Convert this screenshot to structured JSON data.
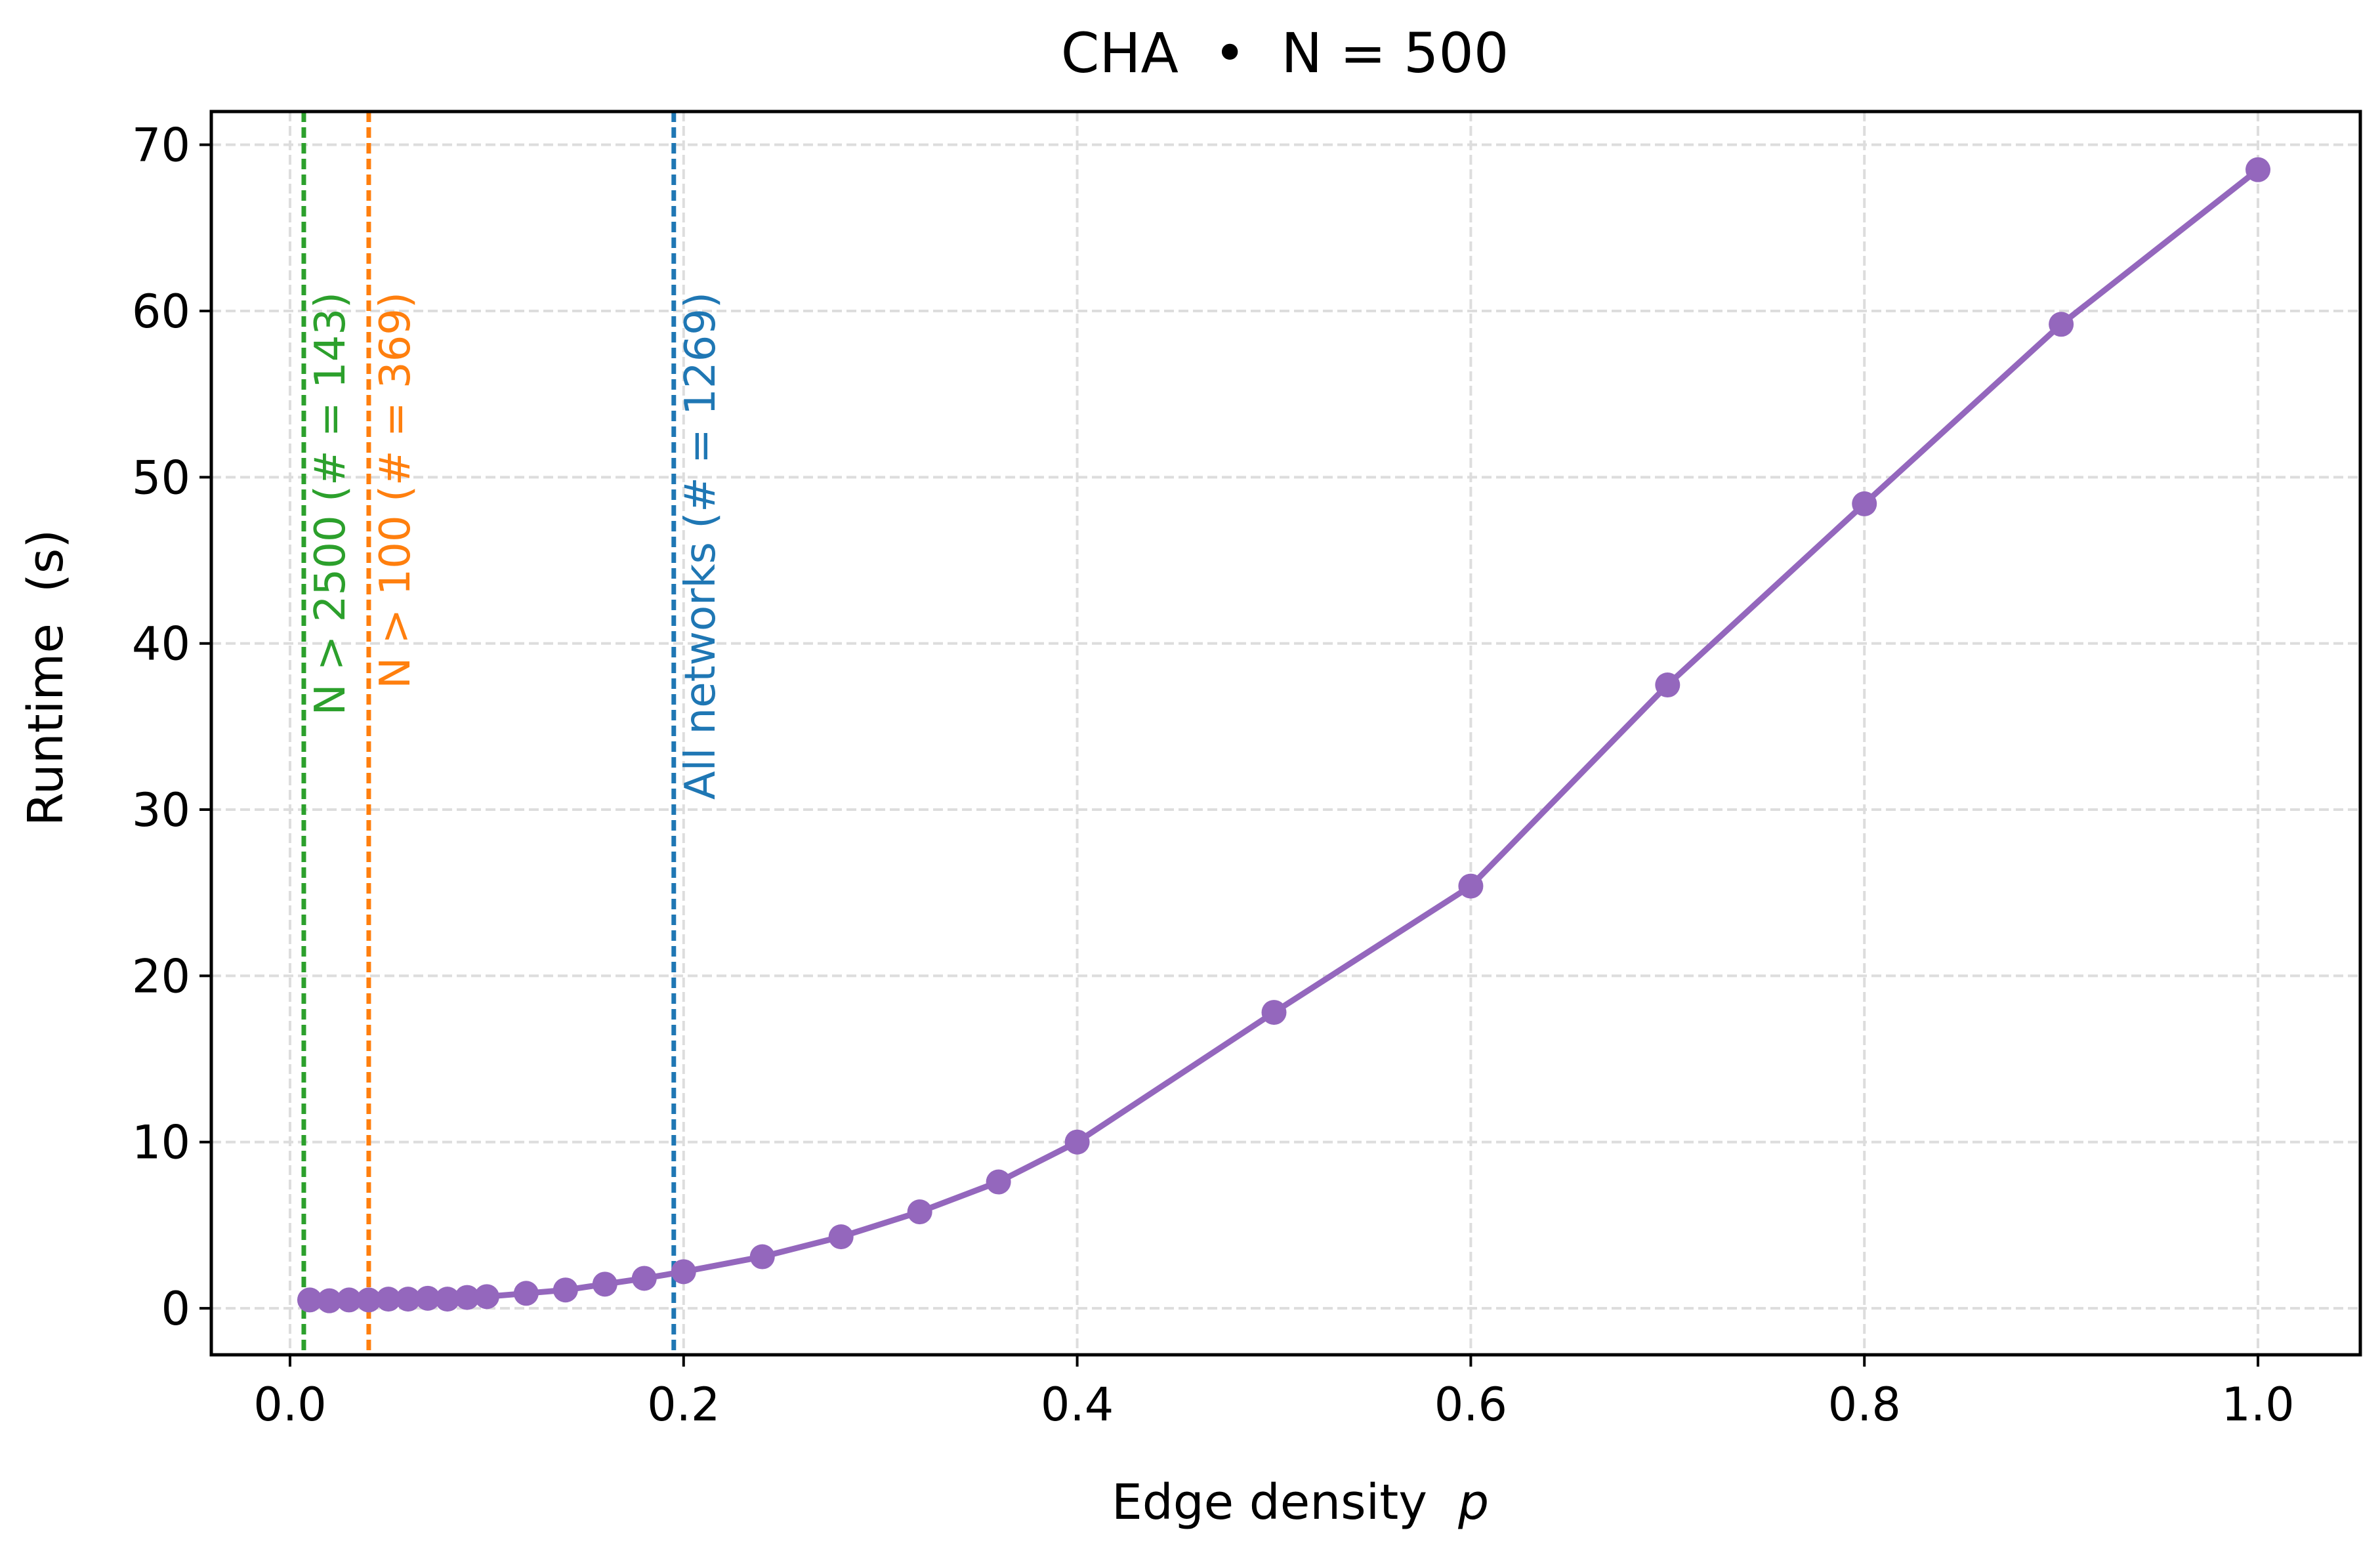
{
  "chart_data": {
    "type": "line",
    "title": "CHA  •  N = 500",
    "xlabel": "Edge density  p",
    "xlabel_text": "Edge density",
    "xlabel_var": "p",
    "ylabel": "Runtime  (s)",
    "xlim": [
      -0.04,
      1.052
    ],
    "ylim": [
      -2.8,
      72.0
    ],
    "xticks": [
      0.0,
      0.2,
      0.4,
      0.6,
      0.8,
      1.0
    ],
    "xtick_labels": [
      "0.0",
      "0.2",
      "0.4",
      "0.6",
      "0.8",
      "1.0"
    ],
    "yticks": [
      0,
      10,
      20,
      30,
      40,
      50,
      60,
      70
    ],
    "ytick_labels": [
      "0",
      "10",
      "20",
      "30",
      "40",
      "50",
      "60",
      "70"
    ],
    "grid": true,
    "series": [
      {
        "color": "#9467bd",
        "x": [
          0.01,
          0.02,
          0.03,
          0.04,
          0.05,
          0.06,
          0.07,
          0.08,
          0.09,
          0.1,
          0.12,
          0.14,
          0.16,
          0.18,
          0.2,
          0.24,
          0.28,
          0.32,
          0.36,
          0.4,
          0.5,
          0.6,
          0.7,
          0.8,
          0.9,
          1.0
        ],
        "y": [
          0.5,
          0.45,
          0.5,
          0.5,
          0.55,
          0.55,
          0.6,
          0.55,
          0.65,
          0.7,
          0.9,
          1.1,
          1.45,
          1.8,
          2.2,
          3.1,
          4.3,
          5.8,
          7.6,
          10.0,
          17.8,
          25.4,
          37.5,
          48.4,
          59.2,
          68.5
        ]
      }
    ],
    "vlines": [
      {
        "x": 0.007,
        "label": "N > 2500 (# = 143)",
        "color": "#2ca02c"
      },
      {
        "x": 0.04,
        "label": "N > 100 (# = 369)",
        "color": "#ff7f0e"
      },
      {
        "x": 0.195,
        "label": "All networks (# = 1269)",
        "color": "#1f77b4"
      }
    ]
  }
}
